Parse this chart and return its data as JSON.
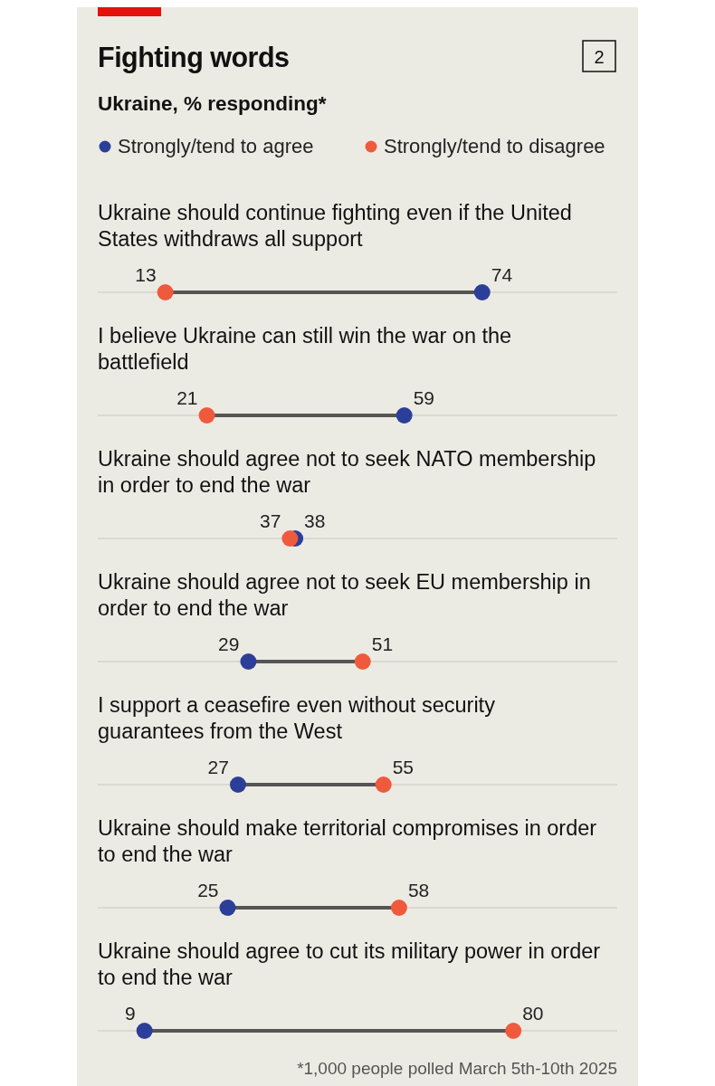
{
  "chart_data": {
    "type": "scatter",
    "orientation": "horizontal",
    "title": "Fighting words",
    "subtitle": "Ukraine, % responding*",
    "categories": [
      "Ukraine should continue fighting even if the United States withdraws all support",
      "I believe Ukraine can still win the war on the battlefield",
      "Ukraine should agree not to seek NATO membership in order to end the war",
      "Ukraine should agree not to seek EU membership in order to end the war",
      "I support a ceasefire even without security guarantees from the West",
      "Ukraine should make territorial compromises in order to end the war",
      "Ukraine should agree to cut its military power in order to end the war"
    ],
    "series": [
      {
        "name": "Strongly/tend to agree",
        "color": "#2b3f98",
        "values": [
          74,
          59,
          38,
          29,
          27,
          25,
          9
        ]
      },
      {
        "name": "Strongly/tend to disagree",
        "color": "#ef5a3c",
        "values": [
          13,
          21,
          37,
          51,
          55,
          58,
          80
        ]
      }
    ],
    "xlim": [
      0,
      100
    ],
    "tick_labels": false,
    "data_labels": true,
    "legend": "top",
    "marker": "circle",
    "grid": "y",
    "annotations": [
      "2",
      "*1,000 people polled March 5th-10th 2025"
    ]
  }
}
